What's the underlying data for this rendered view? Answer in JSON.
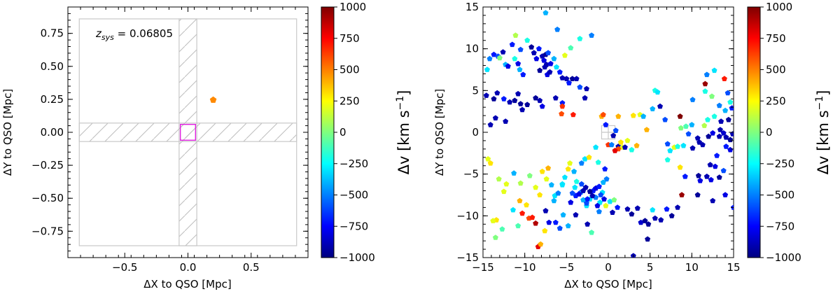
{
  "colors": {
    "axis": "#000000",
    "box": "#c8c8c8",
    "hatch": "#bdbdbd",
    "qso_box": "#e020e0",
    "cmap": [
      "#00007f",
      "#0000ff",
      "#007fff",
      "#00ffff",
      "#7fff7f",
      "#ffff00",
      "#ff7f00",
      "#ff0000",
      "#7f0000"
    ]
  },
  "colorbar_ticks": [
    "1000",
    "750",
    "500",
    "250",
    "0",
    "−250",
    "−500",
    "−750",
    "−1000"
  ],
  "chart_data": [
    {
      "type": "scatter",
      "panel": "left",
      "xlabel": "ΔX to QSO [Mpc]",
      "ylabel": "ΔY to QSO [Mpc]",
      "colorbar_label": "Δv [km s",
      "colorbar_label_sup": "−1",
      "colorbar_label_end": "]",
      "clim": [
        -1000,
        1000
      ],
      "xlim": [
        -0.95,
        0.95
      ],
      "ylim": [
        -0.95,
        0.95
      ],
      "xticks": [
        -0.5,
        0.0,
        0.5
      ],
      "xtick_labels": [
        "−0.5",
        "0.0",
        "0.5"
      ],
      "yticks": [
        -0.75,
        -0.5,
        -0.25,
        0.0,
        0.25,
        0.5,
        0.75
      ],
      "ytick_labels": [
        "−0.75",
        "−0.50",
        "−0.25",
        "0.00",
        "0.25",
        "0.50",
        "0.75"
      ],
      "annotation_prefix": "z",
      "annotation_sub": "sys",
      "annotation_value": " = 0.06805",
      "field_box": [
        -0.86,
        0.86,
        -0.86,
        0.86
      ],
      "slit_halfwidth": 0.07,
      "qso_box": [
        -0.06,
        0.06,
        -0.06,
        0.06
      ],
      "points": [
        [
          0.2,
          0.245,
          480
        ]
      ]
    },
    {
      "type": "scatter",
      "panel": "right",
      "xlabel": "ΔX to QSO [Mpc]",
      "ylabel": "ΔY to QSO [Mpc]",
      "colorbar_label": "Δv [km s",
      "colorbar_label_sup": "−1",
      "colorbar_label_end": "]",
      "clim": [
        -1000,
        1000
      ],
      "xlim": [
        -15,
        15
      ],
      "ylim": [
        -15,
        15
      ],
      "xticks": [
        -15,
        -10,
        -5,
        0,
        5,
        10,
        15
      ],
      "xtick_labels": [
        "−15",
        "−10",
        "−5",
        "0",
        "5",
        "10",
        "15"
      ],
      "yticks": [
        -15,
        -10,
        -5,
        0,
        5,
        10,
        15
      ],
      "ytick_labels": [
        "−15",
        "−10",
        "−5",
        "0",
        "5",
        "10",
        "15"
      ],
      "qso_box": [
        -0.8,
        0.8,
        -0.8,
        0.8
      ],
      "points": [
        [
          -14.5,
          7.5,
          -300
        ],
        [
          -14.2,
          8.8,
          -500
        ],
        [
          -13.7,
          9.3,
          -700
        ],
        [
          -13.2,
          9.1,
          -600
        ],
        [
          -13.0,
          8.9,
          0
        ],
        [
          -12.6,
          9.6,
          -900
        ],
        [
          -12.3,
          8.1,
          -400
        ],
        [
          -12.0,
          7.9,
          -800
        ],
        [
          -11.5,
          10.5,
          -700
        ],
        [
          -11.2,
          8.8,
          -200
        ],
        [
          -11.1,
          11.6,
          100
        ],
        [
          -10.8,
          8.2,
          -800
        ],
        [
          -10.5,
          9.9,
          -600
        ],
        [
          -10.6,
          7.5,
          -400
        ],
        [
          -10.2,
          6.9,
          -700
        ],
        [
          -9.7,
          11.0,
          -200
        ],
        [
          -9.2,
          10.2,
          -950
        ],
        [
          -8.9,
          9.5,
          -900
        ],
        [
          -8.6,
          8.8,
          -800
        ],
        [
          -8.3,
          10.0,
          -700
        ],
        [
          -8.2,
          7.4,
          -950
        ],
        [
          -7.9,
          9.1,
          -900
        ],
        [
          -7.7,
          8.6,
          -800
        ],
        [
          -7.5,
          9.3,
          -950
        ],
        [
          -7.4,
          8.1,
          -900
        ],
        [
          -7.2,
          9.5,
          -600
        ],
        [
          -6.9,
          8.2,
          -800
        ],
        [
          -7.6,
          7.8,
          -900
        ],
        [
          -7.3,
          6.9,
          -800
        ],
        [
          -7.0,
          7.2,
          -900
        ],
        [
          -6.5,
          8.8,
          -400
        ],
        [
          -6.2,
          7.8,
          -300
        ],
        [
          -5.8,
          7.2,
          -700
        ],
        [
          -5.5,
          6.5,
          -900
        ],
        [
          -5.0,
          6.4,
          -900
        ],
        [
          -4.7,
          5.9,
          -700
        ],
        [
          -4.3,
          6.4,
          -950
        ],
        [
          -3.8,
          6.4,
          -900
        ],
        [
          -3.4,
          5.4,
          -600
        ],
        [
          -2.8,
          4.1,
          -900
        ],
        [
          -2.6,
          5.2,
          -900
        ],
        [
          -5.2,
          9.2,
          200
        ],
        [
          -4.5,
          10.1,
          -100
        ],
        [
          -3.4,
          11.2,
          -200
        ],
        [
          -2.0,
          11.6,
          -500
        ],
        [
          -7.5,
          14.3,
          -400
        ],
        [
          -6.1,
          12.3,
          -500
        ],
        [
          -14.6,
          4.4,
          -900
        ],
        [
          -13.7,
          4.0,
          -950
        ],
        [
          -13.3,
          4.7,
          -900
        ],
        [
          -12.5,
          4.0,
          -700
        ],
        [
          -11.8,
          3.6,
          -900
        ],
        [
          -11.2,
          3.8,
          -950
        ],
        [
          -10.8,
          4.6,
          -900
        ],
        [
          -10.5,
          3.4,
          -950
        ],
        [
          -10.3,
          2.7,
          -900
        ],
        [
          -9.7,
          3.3,
          -950
        ],
        [
          -8.7,
          4.1,
          -950
        ],
        [
          -8.2,
          3.8,
          -900
        ],
        [
          -7.9,
          3.1,
          -800
        ],
        [
          -13.5,
          1.7,
          -900
        ],
        [
          -12.3,
          1.3,
          -900
        ],
        [
          -6.3,
          4.1,
          -900
        ],
        [
          -5.5,
          3.5,
          -700
        ],
        [
          -14.1,
          0.9,
          -900
        ],
        [
          -5.6,
          2.2,
          600
        ],
        [
          -5.5,
          3.1,
          650
        ],
        [
          -4.2,
          2.1,
          700
        ],
        [
          -0.8,
          1.9,
          400
        ],
        [
          -0.6,
          2.1,
          600
        ],
        [
          -0.3,
          0.9,
          -700
        ],
        [
          0.0,
          -1.5,
          650
        ],
        [
          0.4,
          -1.5,
          -500
        ],
        [
          0.6,
          -0.4,
          -900
        ],
        [
          0.9,
          0.2,
          -600
        ],
        [
          1.2,
          -1.7,
          -900
        ],
        [
          1.5,
          -1.2,
          300
        ],
        [
          1.7,
          -1.8,
          200
        ],
        [
          1.2,
          -2.0,
          600
        ],
        [
          0.8,
          -2.2,
          800
        ],
        [
          2.0,
          -1.8,
          -900
        ],
        [
          2.3,
          -1.0,
          200
        ],
        [
          2.8,
          -2.1,
          -200
        ],
        [
          3.4,
          -1.6,
          400
        ],
        [
          1.2,
          1.9,
          400
        ],
        [
          3.0,
          2.0,
          300
        ],
        [
          3.8,
          2.1,
          200
        ],
        [
          4.2,
          1.9,
          -400
        ],
        [
          4.6,
          0.3,
          400
        ],
        [
          5.6,
          5.0,
          -200
        ],
        [
          5.9,
          4.8,
          -300
        ],
        [
          5.3,
          2.8,
          -400
        ],
        [
          6.2,
          3.1,
          -900
        ],
        [
          6.8,
          1.5,
          -600
        ],
        [
          7.1,
          -1.4,
          -600
        ],
        [
          7.4,
          -2.2,
          -300
        ],
        [
          7.9,
          -1.8,
          200
        ],
        [
          8.3,
          -1.7,
          -200
        ],
        [
          9.0,
          -1.6,
          -300
        ],
        [
          8.7,
          0.5,
          0
        ],
        [
          9.3,
          0.7,
          -100
        ],
        [
          10.0,
          0.9,
          -400
        ],
        [
          11.5,
          0.8,
          100
        ],
        [
          11.9,
          1.5,
          -200
        ],
        [
          12.7,
          1.9,
          -200
        ],
        [
          13.3,
          3.2,
          -500
        ],
        [
          14.0,
          2.6,
          -400
        ],
        [
          14.6,
          3.6,
          -200
        ],
        [
          14.8,
          2.9,
          -700
        ],
        [
          10.1,
          3.9,
          -500
        ],
        [
          11.6,
          4.9,
          -200
        ],
        [
          11.8,
          6.9,
          -500
        ],
        [
          12.7,
          7.4,
          -300
        ],
        [
          12.4,
          4.3,
          0
        ],
        [
          11.6,
          5.8,
          950
        ],
        [
          8.6,
          1.9,
          1000
        ],
        [
          13.9,
          6.4,
          700
        ],
        [
          14.3,
          4.7,
          -600
        ],
        [
          13.4,
          0.3,
          -900
        ],
        [
          12.5,
          -0.1,
          -800
        ],
        [
          13.3,
          -0.5,
          -900
        ],
        [
          13.8,
          -0.1,
          -850
        ],
        [
          14.1,
          -0.6,
          -900
        ],
        [
          14.6,
          -0.9,
          -950
        ],
        [
          14.9,
          -0.2,
          -900
        ],
        [
          14.4,
          1.5,
          -950
        ],
        [
          13.5,
          1.3,
          -900
        ],
        [
          12.0,
          -0.5,
          -950
        ],
        [
          10.9,
          -1.2,
          -900
        ],
        [
          10.1,
          -1.9,
          -900
        ],
        [
          10.7,
          -0.7,
          -900
        ],
        [
          11.3,
          -1.5,
          -900
        ],
        [
          9.6,
          -0.2,
          -600
        ],
        [
          12.2,
          -3.9,
          -900
        ],
        [
          12.8,
          -4.1,
          -800
        ],
        [
          13.0,
          -2.8,
          -700
        ],
        [
          11.8,
          -5.3,
          -900
        ],
        [
          12.3,
          -5.7,
          -800
        ],
        [
          13.3,
          -5.4,
          -950
        ],
        [
          13.8,
          -4.6,
          -600
        ],
        [
          14.1,
          -1.7,
          -700
        ],
        [
          14.6,
          -2.1,
          -800
        ],
        [
          10.8,
          -5.2,
          -950
        ],
        [
          11.0,
          -5.8,
          -800
        ],
        [
          9.2,
          -5.3,
          -700
        ],
        [
          7.1,
          -3.3,
          -200
        ],
        [
          8.6,
          -4.2,
          300
        ],
        [
          10.7,
          -7.5,
          -950
        ],
        [
          12.5,
          -8.2,
          -900
        ],
        [
          14.0,
          -7.5,
          -800
        ],
        [
          15.0,
          -9.0,
          -700
        ],
        [
          -14.4,
          -3.2,
          200
        ],
        [
          -14.1,
          -3.7,
          300
        ],
        [
          -13.1,
          -5.6,
          100
        ],
        [
          -12.5,
          -7.1,
          200
        ],
        [
          -12.2,
          -6.2,
          200
        ],
        [
          -11.3,
          -4.9,
          -400
        ],
        [
          -10.5,
          -6.1,
          100
        ],
        [
          -9.4,
          -5.2,
          0
        ],
        [
          -8.7,
          -6.6,
          200
        ],
        [
          -8.2,
          -7.5,
          300
        ],
        [
          -7.9,
          -4.7,
          300
        ],
        [
          -7.4,
          -5.6,
          200
        ],
        [
          -7.2,
          -4.3,
          400
        ],
        [
          -6.8,
          -6.3,
          -400
        ],
        [
          -6.4,
          -7.6,
          -300
        ],
        [
          -6.0,
          -7.3,
          -500
        ],
        [
          -5.5,
          -6.3,
          -300
        ],
        [
          -5.2,
          -5.4,
          -300
        ],
        [
          -4.8,
          -4.4,
          300
        ],
        [
          -4.6,
          -3.7,
          200
        ],
        [
          -4.1,
          -4.7,
          -400
        ],
        [
          -3.8,
          -5.9,
          -200
        ],
        [
          -3.2,
          -3.7,
          -500
        ],
        [
          -2.8,
          -3.2,
          -300
        ],
        [
          -2.3,
          -3.0,
          300
        ],
        [
          -1.5,
          -1.8,
          -300
        ],
        [
          -1.2,
          -3.6,
          -200
        ],
        [
          -0.4,
          -4.4,
          -700
        ],
        [
          -0.2,
          -5.6,
          -500
        ],
        [
          -0.6,
          -6.0,
          -400
        ],
        [
          -5.5,
          -6.2,
          -300
        ],
        [
          -6.5,
          -8.2,
          -400
        ],
        [
          -10.6,
          -8.2,
          400
        ],
        [
          -9.8,
          -8.7,
          300
        ],
        [
          -10.3,
          -9.7,
          700
        ],
        [
          -9.5,
          -10.3,
          600
        ],
        [
          -8.7,
          -10.9,
          900
        ],
        [
          -9.1,
          -10.2,
          700
        ],
        [
          -10.8,
          -11.2,
          -100
        ],
        [
          -12.7,
          -11.6,
          -100
        ],
        [
          -13.4,
          -10.5,
          300
        ],
        [
          -13.8,
          -10.6,
          200
        ],
        [
          -13.5,
          -12.6,
          0
        ],
        [
          -11.4,
          -9.3,
          -300
        ],
        [
          -8.4,
          -13.7,
          800
        ],
        [
          -8.1,
          -13.4,
          400
        ],
        [
          -7.6,
          -11.8,
          300
        ],
        [
          -7.5,
          -9.4,
          -900
        ],
        [
          -7.1,
          -10.8,
          -800
        ],
        [
          -6.3,
          -10.8,
          -700
        ],
        [
          -5.8,
          -11.5,
          -600
        ],
        [
          -4.8,
          -11.2,
          -400
        ],
        [
          -3.9,
          -9.9,
          -900
        ],
        [
          -2.5,
          -11.0,
          -900
        ],
        [
          -4.5,
          -8.4,
          -800
        ],
        [
          -3.9,
          -7.6,
          -700
        ],
        [
          -3.3,
          -7.2,
          -500
        ],
        [
          -3.0,
          -8.1,
          -400
        ],
        [
          -2.6,
          -8.8,
          -300
        ],
        [
          -2.2,
          -8.0,
          -300
        ],
        [
          -1.8,
          -7.0,
          -700
        ],
        [
          -1.5,
          -7.8,
          -500
        ],
        [
          -1.0,
          -8.4,
          -300
        ],
        [
          -0.7,
          -7.2,
          -300
        ],
        [
          -0.3,
          -8.8,
          200
        ],
        [
          0.2,
          -8.3,
          -300
        ],
        [
          0.7,
          -8.1,
          0
        ],
        [
          1.1,
          -9.0,
          -700
        ],
        [
          -2.0,
          -12.0,
          -100
        ],
        [
          -5.4,
          -9.9,
          -400
        ],
        [
          -2.6,
          -8.5,
          -600
        ],
        [
          -1.3,
          -8.8,
          -800
        ],
        [
          -1.1,
          -9.5,
          -500
        ],
        [
          0.5,
          -9.6,
          -900
        ],
        [
          2.3,
          -9.2,
          -900
        ],
        [
          2.8,
          -9.8,
          -950
        ],
        [
          3.5,
          -9.1,
          -900
        ],
        [
          3.9,
          -10.8,
          -850
        ],
        [
          4.4,
          -10.6,
          -950
        ],
        [
          4.8,
          -11.0,
          -950
        ],
        [
          5.3,
          -9.3,
          -300
        ],
        [
          5.6,
          -10.3,
          -900
        ],
        [
          6.3,
          -10.5,
          -900
        ],
        [
          7.0,
          -9.2,
          -700
        ],
        [
          7.6,
          -10.0,
          -950
        ],
        [
          8.3,
          -9.0,
          -900
        ],
        [
          8.8,
          -7.5,
          950
        ],
        [
          4.7,
          -12.8,
          -950
        ],
        [
          3.0,
          -14.8,
          -900
        ],
        [
          -3.2,
          -6.2,
          -600
        ],
        [
          -3.5,
          -7.4,
          -800
        ],
        [
          -2.7,
          -6.6,
          -900
        ],
        [
          -2.2,
          -7.1,
          -950
        ],
        [
          -1.9,
          -7.6,
          -900
        ],
        [
          -1.5,
          -6.7,
          -800
        ],
        [
          -1.1,
          -6.5,
          -700
        ],
        [
          -0.9,
          -7.5,
          -600
        ],
        [
          -0.5,
          -8.0,
          -800
        ],
        [
          -2.5,
          -8.0,
          -700
        ],
        [
          -3.0,
          -7.0,
          -900
        ],
        [
          -4.0,
          -6.6,
          -300
        ],
        [
          -4.3,
          -7.3,
          -600
        ]
      ]
    }
  ]
}
